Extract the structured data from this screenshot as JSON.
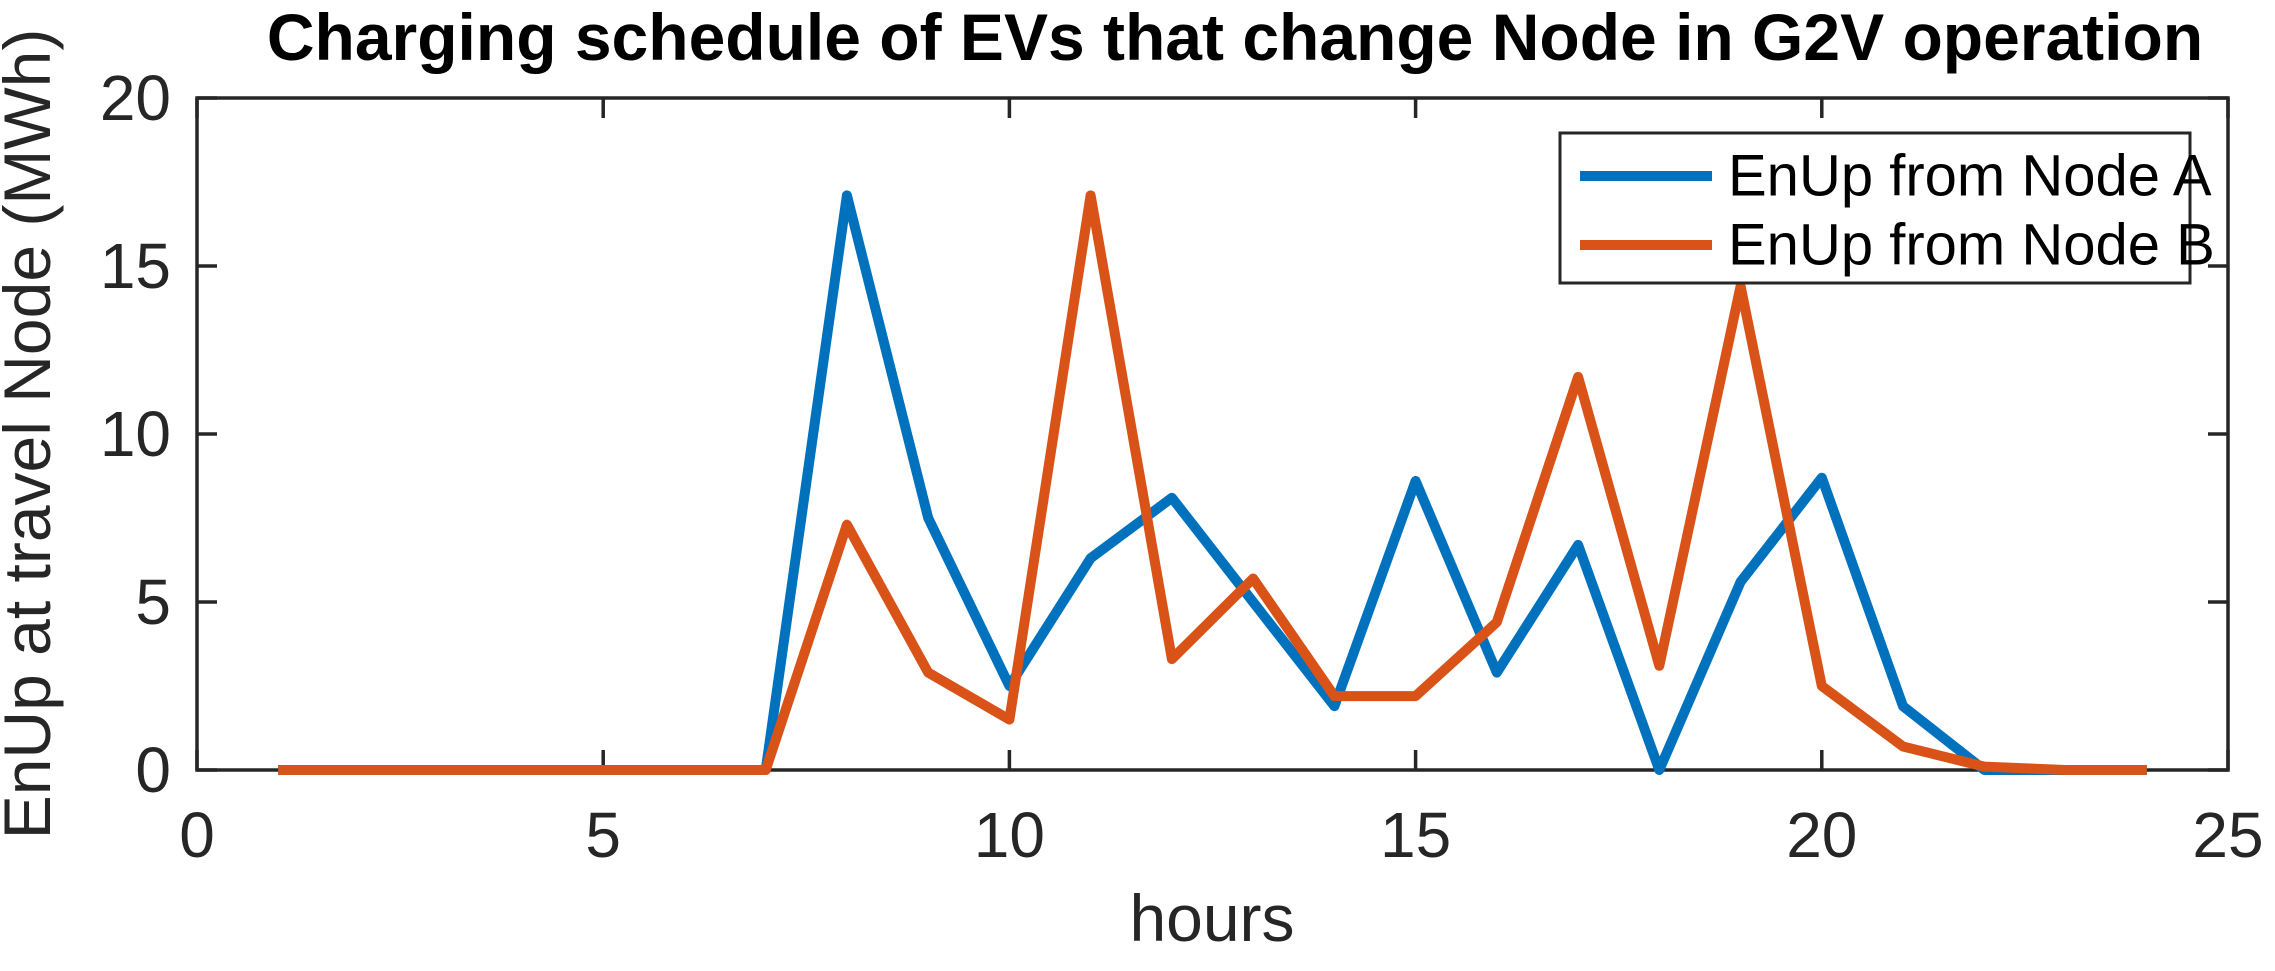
{
  "title": "Charging schedule of EVs that change Node in G2V operation",
  "xlabel": "hours",
  "ylabel": "EnUp at travel Node (MWh)",
  "legend": {
    "items": [
      "EnUp from Node A",
      "EnUp from Node B"
    ]
  },
  "chart_data": {
    "type": "line",
    "title": "Charging schedule of EVs that change Node in G2V operation",
    "xlabel": "hours",
    "ylabel": "EnUp at travel Node (MWh)",
    "x": [
      1,
      2,
      3,
      4,
      5,
      6,
      7,
      8,
      9,
      10,
      11,
      12,
      13,
      14,
      15,
      16,
      17,
      18,
      19,
      20,
      21,
      22,
      23,
      24
    ],
    "series": [
      {
        "name": "EnUp from Node A",
        "color": "#0072BD",
        "values": [
          0,
          0,
          0,
          0,
          0,
          0,
          0,
          17.1,
          7.5,
          2.5,
          6.3,
          8.1,
          5.0,
          1.9,
          8.6,
          2.9,
          6.7,
          0,
          5.6,
          8.7,
          1.9,
          0,
          0,
          0
        ]
      },
      {
        "name": "EnUp from Node B",
        "color": "#D95319",
        "values": [
          0,
          0,
          0,
          0,
          0,
          0,
          0,
          7.3,
          2.9,
          1.5,
          17.1,
          3.3,
          5.7,
          2.2,
          2.2,
          4.4,
          11.7,
          3.1,
          14.4,
          2.5,
          0.7,
          0.1,
          0,
          0
        ]
      }
    ],
    "xlim": [
      0,
      25
    ],
    "ylim": [
      0,
      20
    ],
    "xticks": [
      0,
      5,
      10,
      15,
      20,
      25
    ],
    "yticks": [
      0,
      5,
      10,
      15,
      20
    ],
    "grid": false,
    "legend_position": "top-right",
    "axis_color": "#262626",
    "background": "#ffffff"
  }
}
